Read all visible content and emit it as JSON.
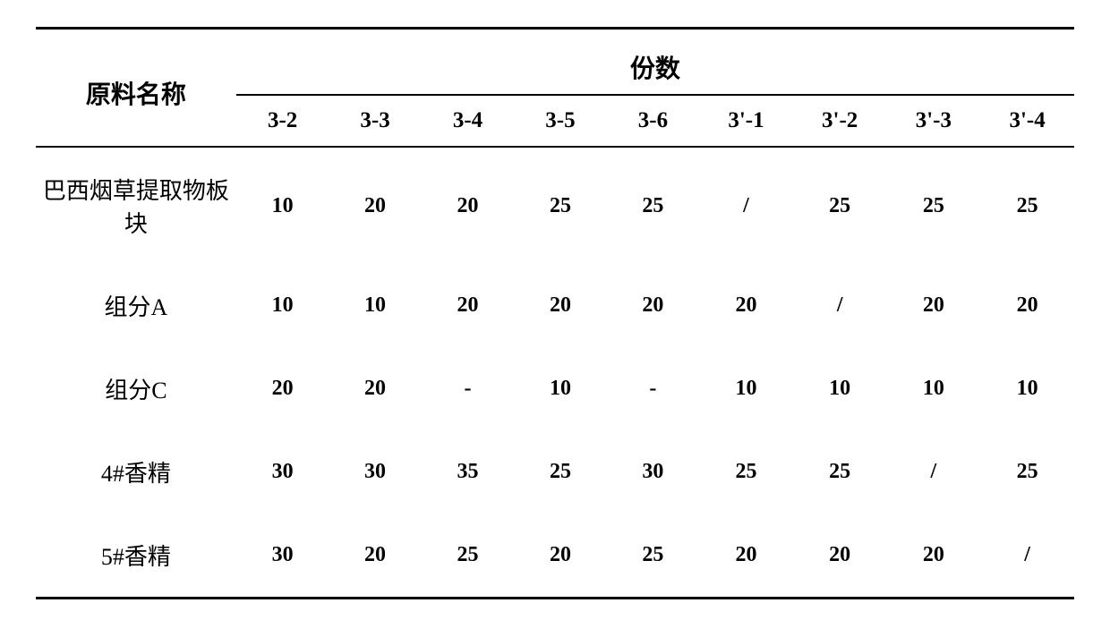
{
  "table": {
    "header": {
      "rowLabel": "原料名称",
      "groupLabel": "份数",
      "columns": [
        "3-2",
        "3-3",
        "3-4",
        "3-5",
        "3-6",
        "3'-1",
        "3'-2",
        "3'-3",
        "3'-4"
      ]
    },
    "rows": [
      {
        "label": "巴西烟草提取物板块",
        "values": [
          "10",
          "20",
          "20",
          "25",
          "25",
          "/",
          "25",
          "25",
          "25"
        ]
      },
      {
        "label": "组分A",
        "values": [
          "10",
          "10",
          "20",
          "20",
          "20",
          "20",
          "/",
          "20",
          "20"
        ]
      },
      {
        "label": "组分C",
        "values": [
          "20",
          "20",
          "-",
          "10",
          "-",
          "10",
          "10",
          "10",
          "10"
        ]
      },
      {
        "label": "4#香精",
        "values": [
          "30",
          "30",
          "35",
          "25",
          "30",
          "25",
          "25",
          "/",
          "25"
        ]
      },
      {
        "label": "5#香精",
        "values": [
          "30",
          "20",
          "25",
          "20",
          "25",
          "20",
          "20",
          "20",
          "/"
        ]
      }
    ],
    "style": {
      "borderColor": "#000000",
      "topBorderWidth": 3,
      "midBorderWidth": 2,
      "bottomBorderWidth": 3,
      "backgroundColor": "#ffffff",
      "headerFontSize": 28,
      "subHeaderFontSize": 25,
      "labelFontSize": 26,
      "valueFontSize": 24,
      "headerFontWeight": "bold",
      "valueFontWeight": "bold",
      "labelFontWeight": "normal",
      "textColor": "#000000",
      "labelColWidth": 240,
      "dataColWidth": 110,
      "dataRowPadding": 28,
      "fontFamily": "SimSun"
    }
  }
}
